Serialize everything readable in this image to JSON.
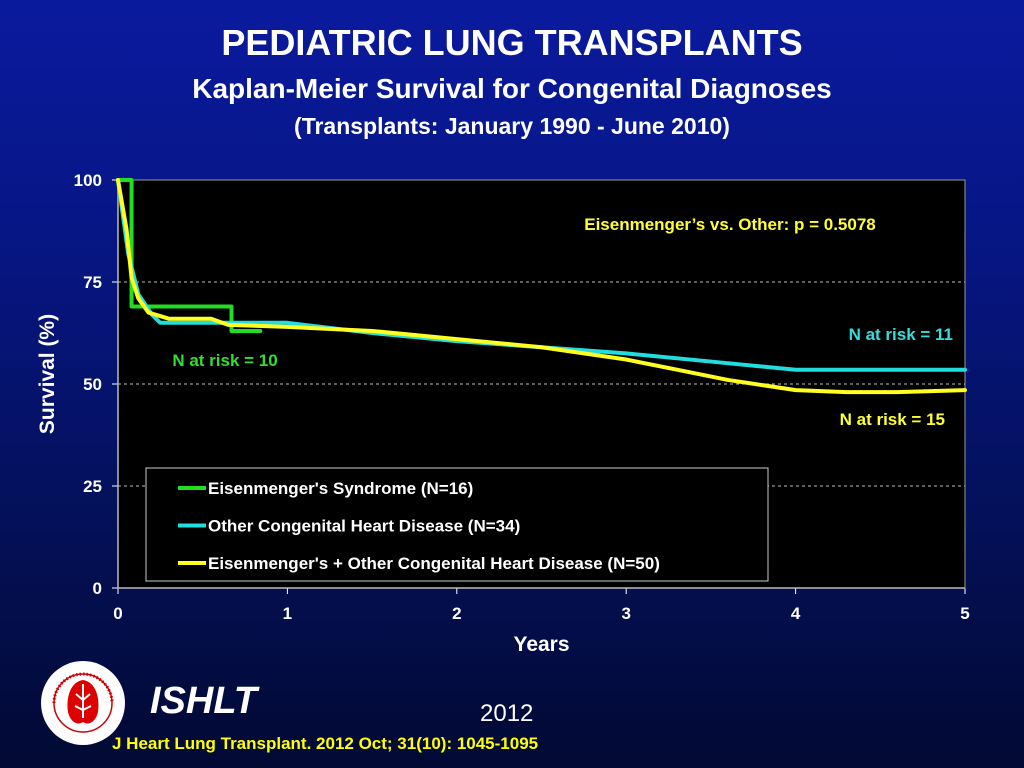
{
  "header": {
    "title": "PEDIATRIC LUNG TRANSPLANTS",
    "subtitle": "Kaplan-Meier Survival for Congenital Diagnoses",
    "subtitle2": "(Transplants: January 1990 - June 2010)"
  },
  "footer": {
    "org": "ISHLT",
    "year": "2012",
    "citation": "J Heart Lung Transplant.  2012 Oct; 31(10): 1045-1095",
    "logo_text": "INTERNATIONAL SOCIETY FOR HEART & LUNG TRANSPLANTATION"
  },
  "chart_data": {
    "type": "line",
    "title": "Kaplan-Meier Survival for Congenital Diagnoses",
    "xlabel": "Years",
    "ylabel": "Survival (%)",
    "xlim": [
      0,
      5
    ],
    "ylim": [
      0,
      100
    ],
    "xticks": [
      "0",
      "1",
      "2",
      "3",
      "4",
      "5"
    ],
    "yticks": [
      "0",
      "25",
      "50",
      "75",
      "100"
    ],
    "grid": "horizontal dashed",
    "legend_position": "bottom-left",
    "annotations": [
      {
        "text": "Eisenmenger’s vs. Other: p = 0.5078",
        "color": "#ffff33"
      },
      {
        "text": "N at risk = 10",
        "color": "#33dd33",
        "series": "Eisenmenger's Syndrome  (N=16)"
      },
      {
        "text": "N at risk = 11",
        "color": "#33dddd",
        "series": "Other Congenital Heart Disease (N=34)"
      },
      {
        "text": "N at risk = 15",
        "color": "#ffff33",
        "series": "Eisenmenger's + Other Congenital Heart Disease (N=50)"
      }
    ],
    "series": [
      {
        "name": "Eisenmenger's Syndrome  (N=16)",
        "color": "#22dd22",
        "step": true,
        "points": [
          [
            0,
            100
          ],
          [
            0.08,
            69
          ],
          [
            0.6,
            69
          ],
          [
            0.67,
            63
          ],
          [
            0.84,
            63
          ]
        ]
      },
      {
        "name": "Other Congenital Heart Disease (N=34)",
        "color": "#22dddd",
        "step": false,
        "points": [
          [
            0,
            100
          ],
          [
            0.06,
            82
          ],
          [
            0.12,
            72
          ],
          [
            0.2,
            67
          ],
          [
            0.25,
            65
          ],
          [
            0.6,
            65
          ],
          [
            1,
            65
          ],
          [
            1.5,
            62.5
          ],
          [
            2,
            60.5
          ],
          [
            2.5,
            59
          ],
          [
            3,
            57.5
          ],
          [
            3.5,
            55.5
          ],
          [
            4,
            53.5
          ],
          [
            4.5,
            53.5
          ],
          [
            5,
            53.5
          ]
        ]
      },
      {
        "name": "Eisenmenger's + Other Congenital Heart Disease (N=50)",
        "color": "#ffff22",
        "step": false,
        "points": [
          [
            0,
            100
          ],
          [
            0.05,
            88
          ],
          [
            0.08,
            76
          ],
          [
            0.12,
            71
          ],
          [
            0.18,
            67.5
          ],
          [
            0.3,
            66
          ],
          [
            0.55,
            66
          ],
          [
            0.65,
            64.5
          ],
          [
            1,
            64
          ],
          [
            1.5,
            63
          ],
          [
            2,
            61
          ],
          [
            2.5,
            59
          ],
          [
            3,
            56
          ],
          [
            3.3,
            53.5
          ],
          [
            3.6,
            51
          ],
          [
            4,
            48.5
          ],
          [
            4.3,
            48
          ],
          [
            4.6,
            48
          ],
          [
            5,
            48.5
          ]
        ]
      }
    ]
  }
}
